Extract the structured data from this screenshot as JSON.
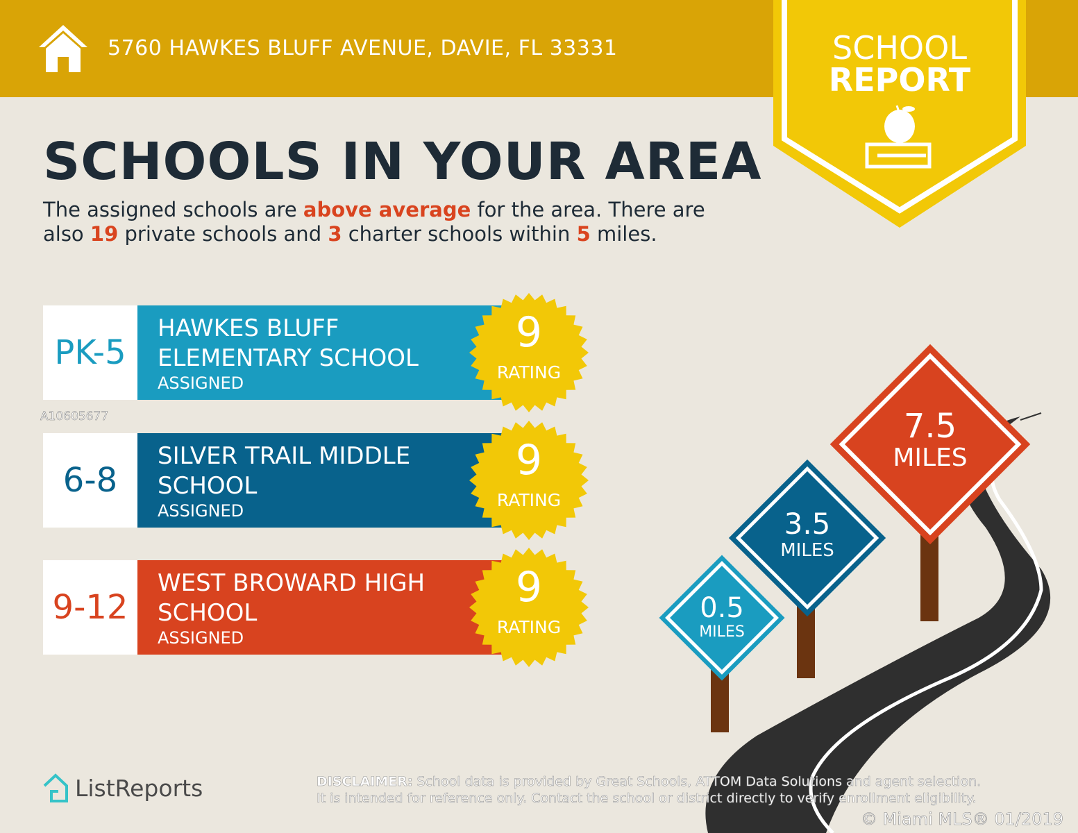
{
  "header": {
    "address": "5760 HAWKES BLUFF AVENUE, DAVIE, FL 33331",
    "icon": "house-icon",
    "color": "#d9a406"
  },
  "badge": {
    "line1": "SCHOOL",
    "line2": "REPORT",
    "icon": "apple-on-book-icon",
    "color": "#f2c807"
  },
  "title": "SCHOOLS IN YOUR AREA",
  "intro": {
    "p1": "The assigned schools are ",
    "h1": "above average",
    "p2": " for the area. There are also ",
    "h2": "19",
    "p3": " private schools and ",
    "h3": "3",
    "p4": " charter schools within ",
    "h4": "5",
    "p5": " miles."
  },
  "schools": [
    {
      "grade": "PK-5",
      "name1": "HAWKES BLUFF",
      "name2": "ELEMENTARY SCHOOL",
      "status": "ASSIGNED",
      "rating": "9",
      "rating_label": "RATING",
      "color": "#1a9cc0"
    },
    {
      "grade": "6-8",
      "name1": "SILVER TRAIL MIDDLE",
      "name2": "SCHOOL",
      "status": "ASSIGNED",
      "rating": "9",
      "rating_label": "RATING",
      "color": "#08628c"
    },
    {
      "grade": "9-12",
      "name1": "WEST BROWARD HIGH",
      "name2": "SCHOOL",
      "status": "ASSIGNED",
      "rating": "9",
      "rating_label": "RATING",
      "color": "#d8431f"
    }
  ],
  "signs": [
    {
      "value": "0.5",
      "unit": "MILES",
      "color": "#1a9cc0"
    },
    {
      "value": "3.5",
      "unit": "MILES",
      "color": "#08628c"
    },
    {
      "value": "7.5",
      "unit": "MILES",
      "color": "#d8431f"
    }
  ],
  "watermark": "A10605677",
  "footer": {
    "logo": "ListReports",
    "disclaimer_label": "DISCLAIMER:",
    "disclaimer_1": " School data is provided by Great Schools, ATTOM Data Solutions and agent selection.",
    "disclaimer_2": "It is intended for reference only. Contact the school or district directly to verify enrollment eligibility.",
    "copyright": "© Miami MLS® 01/2019"
  }
}
